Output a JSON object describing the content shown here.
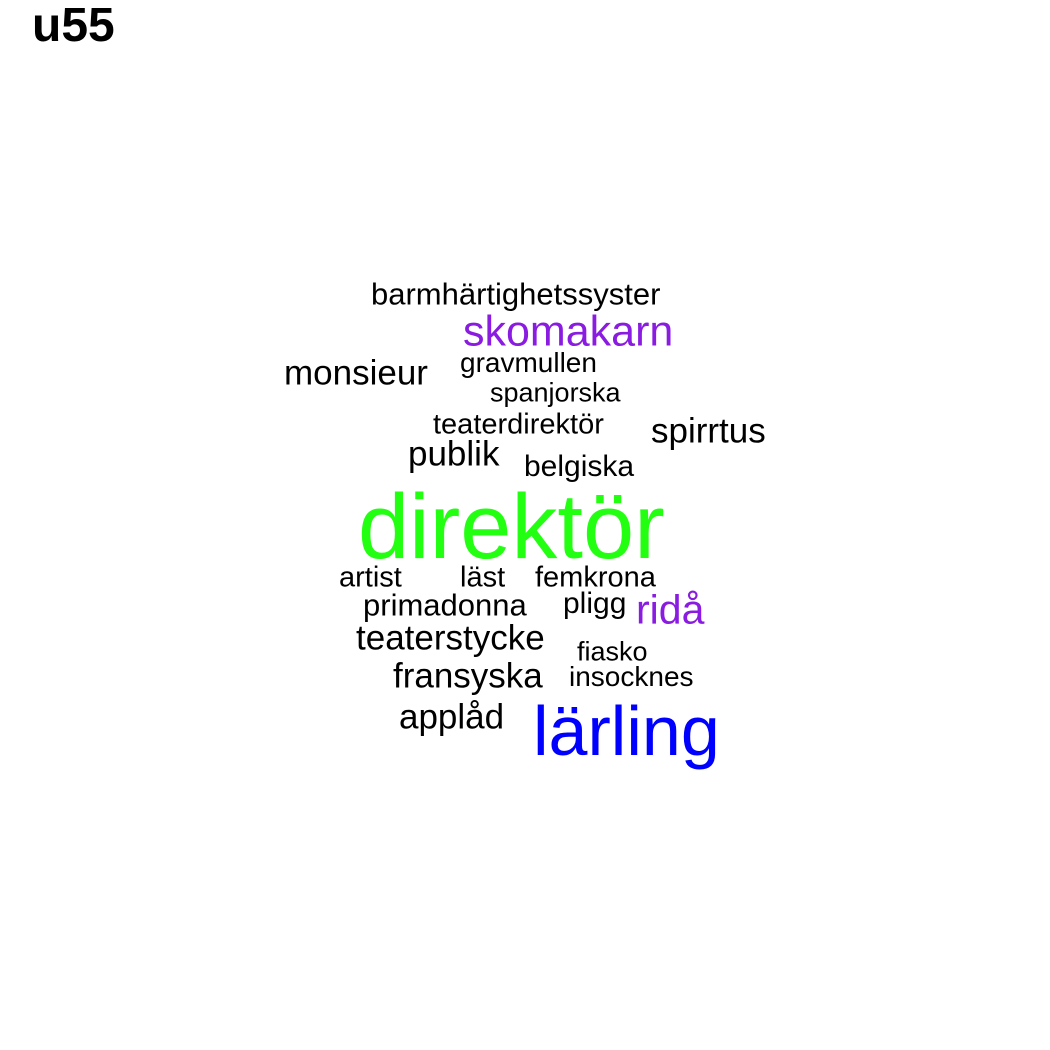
{
  "title": "u55",
  "colors": {
    "black": "#000000",
    "green": "#22ff11",
    "blue": "#0000ff",
    "purple": "#8a1be0"
  },
  "words": [
    {
      "key": "barmhartighetssyster",
      "text": "barmhärtighetssyster",
      "color": "#000000"
    },
    {
      "key": "skomakarn",
      "text": "skomakarn",
      "color": "#8a1be0"
    },
    {
      "key": "monsieur",
      "text": "monsieur",
      "color": "#000000"
    },
    {
      "key": "gravmullen",
      "text": "gravmullen",
      "color": "#000000"
    },
    {
      "key": "spanjorska",
      "text": "spanjorska",
      "color": "#000000"
    },
    {
      "key": "teaterdirektor",
      "text": "teaterdirektör",
      "color": "#000000"
    },
    {
      "key": "spirrtus",
      "text": "spirrtus",
      "color": "#000000"
    },
    {
      "key": "publik",
      "text": "publik",
      "color": "#000000"
    },
    {
      "key": "belgiska",
      "text": "belgiska",
      "color": "#000000"
    },
    {
      "key": "direktor",
      "text": "direktör",
      "color": "#22ff11"
    },
    {
      "key": "artist",
      "text": "artist",
      "color": "#000000"
    },
    {
      "key": "last",
      "text": "läst",
      "color": "#000000"
    },
    {
      "key": "femkrona",
      "text": "femkrona",
      "color": "#000000"
    },
    {
      "key": "primadonna",
      "text": "primadonna",
      "color": "#000000"
    },
    {
      "key": "pligg",
      "text": "pligg",
      "color": "#000000"
    },
    {
      "key": "rida",
      "text": "ridå",
      "color": "#8a1be0"
    },
    {
      "key": "teaterstycke",
      "text": "teaterstycke",
      "color": "#000000"
    },
    {
      "key": "fiasko",
      "text": "fiasko",
      "color": "#000000"
    },
    {
      "key": "fransyska",
      "text": "fransyska",
      "color": "#000000"
    },
    {
      "key": "insocknes",
      "text": "insocknes",
      "color": "#000000"
    },
    {
      "key": "applad",
      "text": "applåd",
      "color": "#000000"
    },
    {
      "key": "larling",
      "text": "lärling",
      "color": "#0000ff"
    }
  ]
}
